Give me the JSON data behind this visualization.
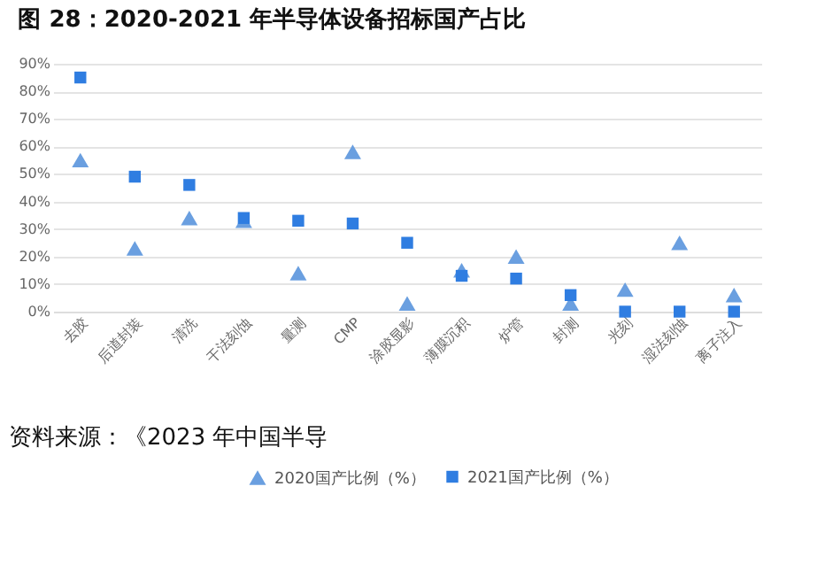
{
  "chart_data": {
    "type": "scatter",
    "title": "图 28：2020-2021 年半导体设备招标国产占比",
    "categories": [
      "去胶",
      "后道封装",
      "清洗",
      "干法刻蚀",
      "量测",
      "CMP",
      "涂胶显影",
      "薄膜沉积",
      "炉管",
      "封测",
      "光刻",
      "湿法刻蚀",
      "离子注入"
    ],
    "series": [
      {
        "name": "2020国产比例（%）",
        "color": "#6a9fe0",
        "marker": "triangle",
        "values": [
          55,
          23,
          34,
          33,
          14,
          58,
          3,
          15,
          20,
          3,
          8,
          25,
          6
        ]
      },
      {
        "name": "2021国产比例（%）",
        "color": "#2f7de1",
        "marker": "square",
        "values": [
          85,
          49,
          46,
          34,
          33,
          32,
          25,
          13,
          12,
          6,
          0,
          0,
          0
        ]
      }
    ],
    "ylim": [
      0,
      90
    ],
    "yticks": [
      {
        "value": 0,
        "label": "0%"
      },
      {
        "value": 10,
        "label": "10%"
      },
      {
        "value": 20,
        "label": "20%"
      },
      {
        "value": 30,
        "label": "30%"
      },
      {
        "value": 40,
        "label": "40%"
      },
      {
        "value": 50,
        "label": "50%"
      },
      {
        "value": 60,
        "label": "60%"
      },
      {
        "value": 70,
        "label": "70%"
      },
      {
        "value": 80,
        "label": "80%"
      },
      {
        "value": 90,
        "label": "90%"
      }
    ],
    "grid": "y",
    "legend": "bottom",
    "annotations": [
      "资料来源：《2023 年中国半导"
    ]
  }
}
